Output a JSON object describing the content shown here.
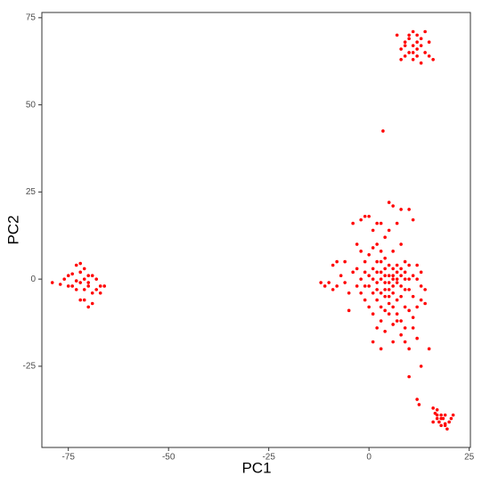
{
  "chart_data": {
    "type": "scatter",
    "x_label": "PC1",
    "y_label": "PC2",
    "color": "#ff0000",
    "xlim": [
      -81.6,
      25.3
    ],
    "ylim": [
      -48.3,
      76.5
    ],
    "xticks": [
      -75,
      -50,
      -25,
      0,
      25
    ],
    "yticks": [
      -25,
      0,
      25,
      50,
      75
    ],
    "grid": false,
    "x": [
      -12,
      -11,
      -10,
      -9,
      -8,
      -9,
      -8,
      -7,
      -6,
      -5,
      -4,
      -4,
      -3,
      -2,
      -1,
      0,
      2,
      3,
      5,
      6,
      8,
      10,
      11,
      1,
      4,
      -2,
      -1,
      0,
      1,
      3,
      4,
      6,
      7,
      8,
      9,
      10,
      11,
      12,
      13,
      14,
      15,
      13,
      10,
      9,
      8,
      11,
      12,
      10,
      7,
      5,
      3,
      1,
      0,
      -1,
      -2,
      -3,
      -2,
      -1,
      0,
      1,
      2,
      3,
      4,
      5,
      6,
      7,
      8,
      9,
      10,
      11,
      2,
      3,
      4,
      5,
      6,
      7,
      8,
      9,
      10,
      4,
      5,
      6,
      7,
      8,
      9,
      3,
      2,
      1,
      0,
      1,
      2,
      3,
      4,
      5,
      6,
      7,
      8,
      6,
      4,
      2,
      1,
      3,
      6,
      9,
      12,
      13,
      11,
      5,
      6,
      4,
      3,
      7,
      8,
      2,
      5,
      6,
      4,
      9,
      10,
      -1,
      -3,
      -5,
      -6,
      12,
      13,
      14,
      2,
      5,
      7,
      -79,
      -77,
      -76,
      -75,
      -74,
      -74,
      -73,
      -73,
      -72,
      -72,
      -72,
      -71,
      -71,
      -71,
      -70,
      -70,
      -70,
      -69,
      -69,
      -68,
      -68,
      -67,
      -67,
      -66,
      -73,
      -71,
      -72,
      -70,
      -69,
      -75,
      7,
      8,
      8,
      9,
      9,
      10,
      10,
      11,
      11,
      11,
      12,
      12,
      12,
      13,
      13,
      13,
      14,
      14,
      15,
      15,
      16,
      9,
      10,
      12,
      11,
      12,
      12.5,
      16,
      16.5,
      17,
      17,
      17.5,
      18,
      18,
      18.5,
      19,
      19,
      19.5,
      20,
      20.5,
      16,
      17,
      18,
      19,
      21,
      3.5
    ],
    "values": [
      -1,
      -2,
      -1,
      -3,
      -2,
      4,
      5,
      1,
      -1,
      -9,
      2,
      16,
      10,
      17,
      18,
      18,
      16,
      16,
      22,
      21,
      20,
      20,
      17,
      14,
      12,
      8,
      5,
      7,
      9,
      8,
      6,
      8,
      4,
      10,
      2,
      4,
      1,
      0,
      -2,
      -3,
      -20,
      -25,
      -28,
      -18,
      -16,
      -14,
      -17,
      -20,
      -12,
      -10,
      -12,
      -10,
      -8,
      -6,
      -4,
      -2,
      0,
      2,
      1,
      3,
      2,
      0,
      -1,
      1,
      0,
      -1,
      -2,
      0,
      -3,
      -5,
      -3,
      -4,
      -5,
      -3,
      -4,
      -6,
      -5,
      -8,
      -9,
      3,
      4,
      3,
      2,
      3,
      5,
      5,
      5,
      0,
      -2,
      -4,
      -6,
      -8,
      -9,
      -7,
      -8,
      -10,
      -12,
      -13,
      -15,
      -14,
      -18,
      -20,
      -18,
      -14,
      -8,
      -6,
      -11,
      -1,
      1,
      1,
      2,
      0,
      1,
      -1,
      -5,
      -2,
      -3,
      -3,
      0,
      -2,
      3,
      -4,
      5,
      4,
      2,
      -7,
      10,
      14,
      16,
      -1,
      -1.5,
      0,
      1,
      -2,
      1.5,
      -3,
      4,
      4.5,
      -1,
      2,
      0,
      -6,
      3,
      -2,
      -8,
      1,
      -7,
      -4,
      -3,
      0,
      -2,
      -4,
      -2,
      -0.5,
      -3,
      -6,
      -1,
      1,
      -2,
      70,
      66,
      63,
      68,
      64,
      69,
      65,
      71,
      67,
      63,
      70,
      66,
      64,
      69,
      62,
      67,
      71,
      65,
      68,
      64,
      63,
      67,
      70,
      68,
      65,
      -34.5,
      -36,
      -37,
      -38.5,
      -40,
      -37.5,
      -41,
      -39,
      -42,
      -40,
      -41.5,
      -39,
      -43,
      -41,
      -40,
      -41,
      -39,
      -40,
      -42,
      -39,
      42.5
    ]
  }
}
